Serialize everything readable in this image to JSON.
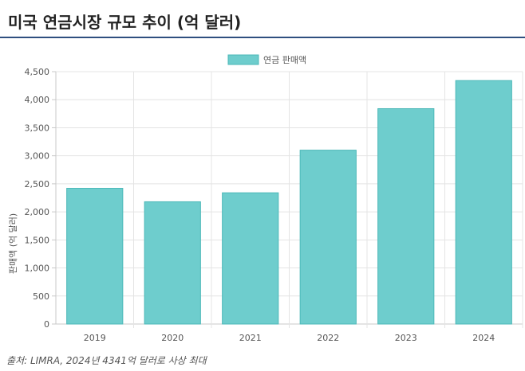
{
  "header": {
    "title": "미국 연금시장 규모 추이 (억 달러)"
  },
  "chart_data": {
    "type": "bar",
    "title": "",
    "categories": [
      "2019",
      "2020",
      "2021",
      "2022",
      "2023",
      "2024"
    ],
    "series": [
      {
        "name": "연금 판매액",
        "values": [
          2420,
          2180,
          2340,
          3100,
          3840,
          4341
        ]
      }
    ],
    "xlabel": "",
    "ylabel": "판매액 (억 달러)",
    "ylim": [
      0,
      4500
    ],
    "yticks": [
      0,
      500,
      1000,
      1500,
      2000,
      2500,
      3000,
      3500,
      4000,
      4500
    ],
    "ytick_labels": [
      "0",
      "500",
      "1,000",
      "1,500",
      "2,000",
      "2,500",
      "3,000",
      "3,500",
      "4,000",
      "4,500"
    ],
    "grid": true,
    "legend_position": "top-center",
    "colors": {
      "bar_fill": "#6ecdcd",
      "bar_stroke": "#4bb8b8",
      "grid": "#e4e4e4"
    }
  },
  "footer": {
    "source": "출처: LIMRA, 2024년 4341억 달러로 사상 최대"
  }
}
